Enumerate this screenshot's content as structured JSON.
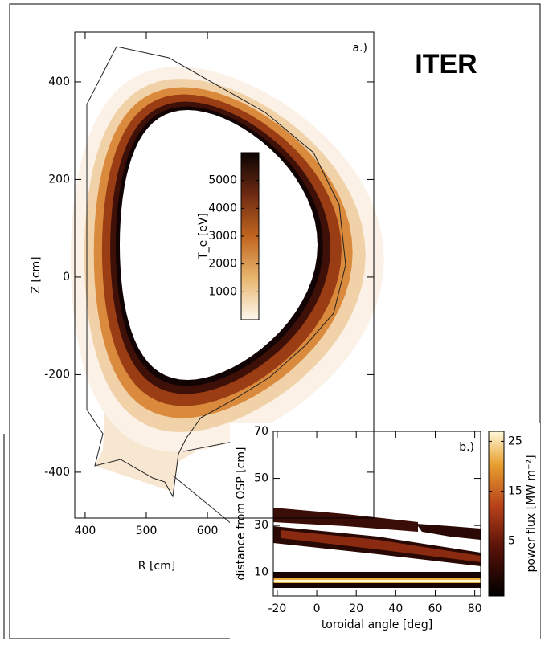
{
  "annotation": "ITER",
  "chart_data": [
    {
      "type": "contour",
      "panel_label": "a.)",
      "xlabel": "R [cm]",
      "ylabel": "Z [cm]",
      "xlim": [
        383,
        872
      ],
      "ylim": [
        -494,
        502
      ],
      "xticks": [
        400,
        500,
        600
      ],
      "yticks": [
        -400,
        -200,
        0,
        200,
        400
      ],
      "colorbar": {
        "label": "T_e [eV]",
        "lim": [
          0,
          6000
        ],
        "ticks": [
          1000,
          2000,
          3000,
          4000,
          5000
        ]
      }
    },
    {
      "type": "heatmap",
      "panel_label": "b.)",
      "xlabel": "toroidal angle [deg]",
      "ylabel": "distance from OSP [cm]",
      "xlim": [
        -22,
        83
      ],
      "ylim": [
        0,
        70
      ],
      "xticks": [
        -20,
        0,
        20,
        40,
        60,
        80
      ],
      "yticks": [
        10,
        30,
        50,
        70
      ],
      "colorbar": {
        "label": "power flux [MW m⁻²]",
        "lim": [
          -6,
          27
        ],
        "ticks": [
          5,
          15,
          25
        ]
      }
    }
  ]
}
